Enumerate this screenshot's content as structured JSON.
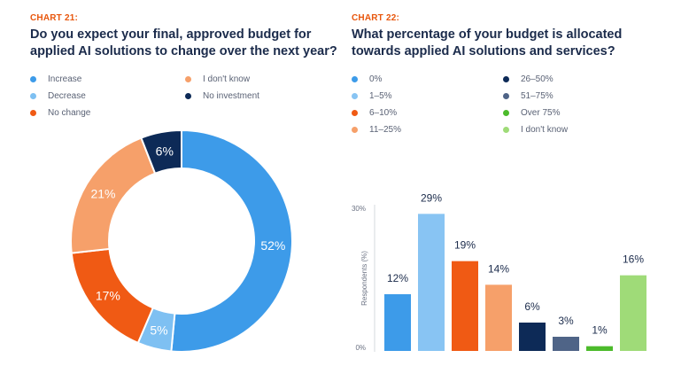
{
  "chart21": {
    "label": "CHART 21:",
    "title_line1": "Do you expect your final, approved budget for",
    "title_line2": "applied AI solutions to change over the next year?"
  },
  "chart22": {
    "label": "CHART 22:",
    "title_line1": "What percentage of your budget is allocated",
    "title_line2": "towards applied AI solutions and services?"
  },
  "chart_data": [
    {
      "type": "pie",
      "subtype": "donut",
      "title": "Do you expect your final, approved budget for applied AI solutions to change over the next year?",
      "legend": [
        "Increase",
        "Decrease",
        "No change",
        "I don't know",
        "No investment"
      ],
      "slices": [
        {
          "label": "Increase",
          "value": 52,
          "display": "52%",
          "color": "#3d9be9"
        },
        {
          "label": "Decrease",
          "value": 5,
          "display": "5%",
          "color": "#7ec0f2"
        },
        {
          "label": "No change",
          "value": 17,
          "display": "17%",
          "color": "#f05a14"
        },
        {
          "label": "I don't know",
          "value": 21,
          "display": "21%",
          "color": "#f6a06a"
        },
        {
          "label": "No investment",
          "value": 6,
          "display": "6%",
          "color": "#0d2a57"
        }
      ]
    },
    {
      "type": "bar",
      "title": "What percentage of your budget is allocated towards applied AI solutions and services?",
      "ylabel": "Respondents (%)",
      "ylim": [
        0,
        30
      ],
      "yticks": [
        "0%",
        "30%"
      ],
      "categories": [
        "0%",
        "1–5%",
        "6–10%",
        "11–25%",
        "26–50%",
        "51–75%",
        "Over 75%",
        "I don't know"
      ],
      "values": [
        12,
        29,
        19,
        14,
        6,
        3,
        1,
        16
      ],
      "labels": [
        "12%",
        "29%",
        "19%",
        "14%",
        "6%",
        "3%",
        "1%",
        "16%"
      ],
      "colors": [
        "#3d9be9",
        "#88c4f3",
        "#f05a14",
        "#f6a06a",
        "#0d2a57",
        "#4f6487",
        "#4cbb2b",
        "#9fdb78"
      ]
    }
  ]
}
